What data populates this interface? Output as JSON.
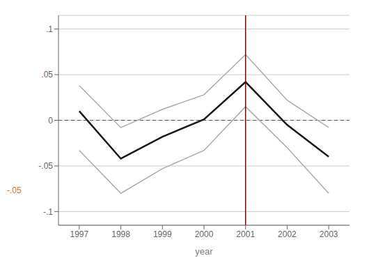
{
  "chart_data": {
    "type": "line",
    "x": [
      1997,
      1998,
      1999,
      2000,
      2001,
      2002,
      2003
    ],
    "series": [
      {
        "color": "#aaaaaa",
        "values": [
          0.038,
          -0.008,
          0.012,
          0.028,
          0.072,
          0.022,
          -0.008
        ]
      },
      {
        "color": "#aaaaaa",
        "values": [
          -0.033,
          -0.08,
          -0.053,
          -0.033,
          0.015,
          -0.03,
          -0.08
        ]
      },
      {
        "color": "#1a1a1a",
        "values": [
          0.01,
          -0.042,
          -0.018,
          0.001,
          0.042,
          -0.005,
          -0.04
        ]
      }
    ],
    "xlabel": "year",
    "xlim": [
      1996.5,
      2003.5
    ],
    "xticks": [
      1997,
      1998,
      1999,
      2000,
      2001,
      2002,
      2003
    ],
    "ylim": [
      -0.115,
      0.115
    ],
    "yticks": [
      {
        "value": -0.1,
        "label": "-.1"
      },
      {
        "value": -0.05,
        "label": "-.05"
      },
      0,
      {
        "value": 0.05,
        "label": ".05"
      },
      {
        "value": 0.1,
        "label": ".1"
      }
    ],
    "grid": true,
    "hlines": [
      {
        "y": 0,
        "color": "#555555",
        "line_style": "dashed"
      }
    ],
    "vlines": [
      {
        "x": 2001,
        "color": "#7f0000"
      }
    ],
    "annotations": [
      {
        "text": "-.05",
        "color": "#c87820"
      }
    ]
  }
}
